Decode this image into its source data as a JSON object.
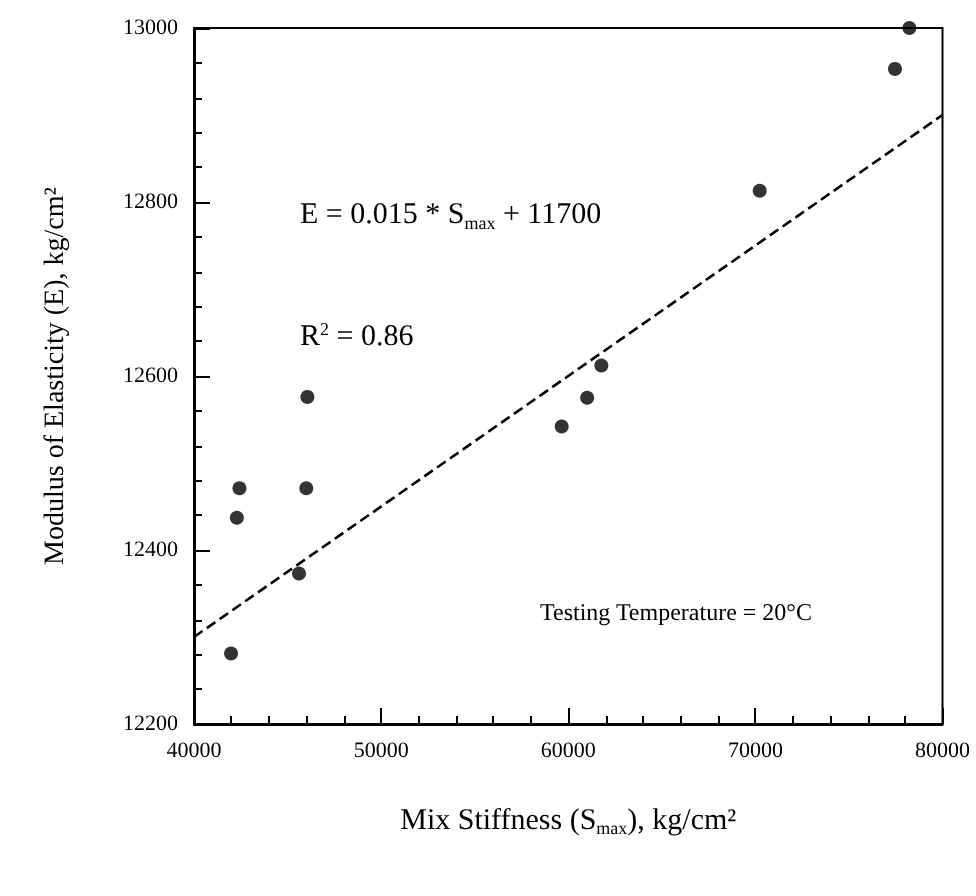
{
  "chart_data": {
    "type": "scatter",
    "xlabel": "Mix Stiffness (S$_{max}$), kg/cm²",
    "ylabel": "Modulus of Elasticity (E), kg/cm²",
    "annotations": [
      "E = 0.015 * S$_{max}$ + 11700",
      "R$^{2}$ = 0.86",
      "Testing Temperature = 20°C"
    ],
    "xlim": [
      40000,
      80000
    ],
    "xticks": [
      40000,
      50000,
      60000,
      70000,
      80000
    ],
    "ylim": [
      12200,
      13000
    ],
    "yticks": [
      12200,
      12400,
      12600,
      12800,
      13000
    ],
    "grid": false,
    "marker": "circle",
    "series": [
      {
        "color": "#000000",
        "x": [
          41980,
          42290,
          42430,
          45610,
          46000,
          46060,
          59650,
          61010,
          61770,
          70230,
          77460,
          78230
        ],
        "values": [
          12281,
          12437,
          12471,
          12373,
          12471,
          12576,
          12542,
          12575,
          12612,
          12813,
          12953,
          13000
        ]
      },
      {
        "type": "line",
        "color": "#000000",
        "line_style": "dashed",
        "marker": "none",
        "x": [
          40000,
          80000
        ],
        "values": [
          12300,
          12900
        ]
      }
    ]
  }
}
